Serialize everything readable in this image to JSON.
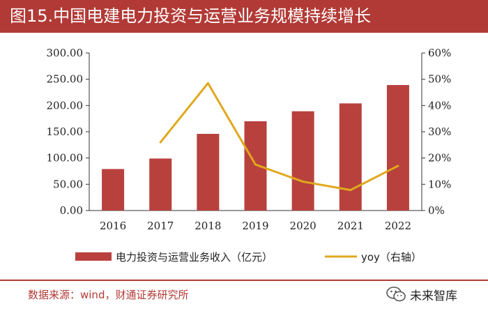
{
  "title": "图15.中国电建电力投资与运营业务规模持续增长",
  "source_text": "数据来源：wind，财通证券研究所",
  "watermark_text": "未来智库",
  "icons": {
    "watermark": "wechat-icon"
  },
  "colors": {
    "title_bg": "#b23a36",
    "bar": "#b8413d",
    "line": "#e0a81c",
    "source": "#b23a36"
  },
  "chart_data": {
    "type": "bar",
    "categories": [
      "2016",
      "2017",
      "2018",
      "2019",
      "2020",
      "2021",
      "2022"
    ],
    "series": [
      {
        "name": "电力投资与运营业务收入（亿元）",
        "type": "bar",
        "axis": "left",
        "values": [
          79,
          99,
          146,
          170,
          189,
          204,
          239
        ]
      },
      {
        "name": "yoy（右轴）",
        "type": "line",
        "axis": "right",
        "values": [
          null,
          26,
          48.5,
          17.5,
          11,
          7.8,
          17
        ]
      }
    ],
    "left_axis": {
      "min": 0,
      "max": 300,
      "ticks": [
        "0.00",
        "50.00",
        "100.00",
        "150.00",
        "200.00",
        "250.00",
        "300.00"
      ]
    },
    "right_axis": {
      "min": 0,
      "max": 60,
      "ticks": [
        "0%",
        "10%",
        "20%",
        "30%",
        "40%",
        "50%",
        "60%"
      ]
    },
    "legend": {
      "position": "bottom"
    },
    "grid": false
  }
}
